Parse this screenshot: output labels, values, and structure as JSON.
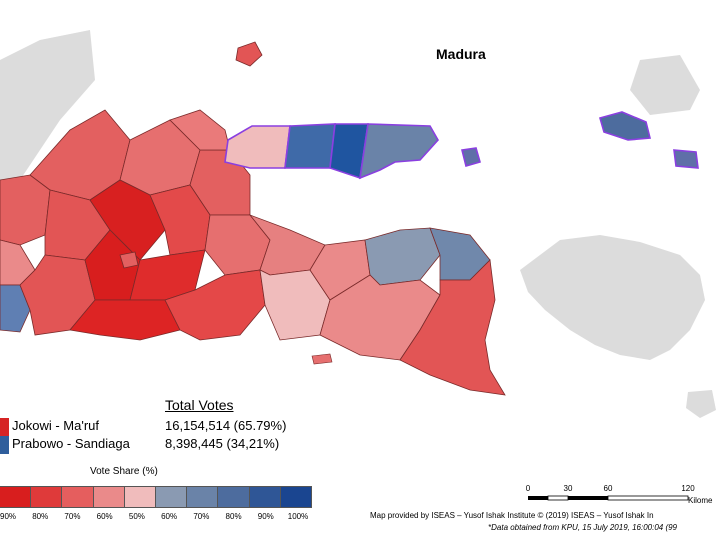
{
  "map": {
    "region_label": "Madura",
    "colors": {
      "sea": "#ffffff",
      "neighbor_land": "#dcdcdc",
      "madura_border": "#8a3fe0",
      "boundary": "#7a2a2a",
      "jokowi": "#d62424",
      "prabowo": "#2f5e9c"
    }
  },
  "legend": {
    "total_title": "Total Votes",
    "candidates": [
      {
        "name": "Jokowi - Ma'ruf",
        "votes": "16,154,514 (65.79%)",
        "color": "#d62424"
      },
      {
        "name": "Prabowo - Sandiaga",
        "votes": "8,398,445 (34,21%)",
        "color": "#2f5e9c"
      }
    ]
  },
  "vote_share": {
    "title": "Vote Share (%)",
    "ticks": [
      "90%",
      "80%",
      "70%",
      "60%",
      "50%",
      "60%",
      "70%",
      "80%",
      "90%",
      "100%"
    ],
    "bins": [
      {
        "color": "#d81e1e"
      },
      {
        "color": "#df3a3a"
      },
      {
        "color": "#e55e5e"
      },
      {
        "color": "#ea8a8a"
      },
      {
        "color": "#f0bcbc"
      },
      {
        "color": "#8a9ab2"
      },
      {
        "color": "#6a83a8"
      },
      {
        "color": "#4d6c9e"
      },
      {
        "color": "#2f5696"
      },
      {
        "color": "#1a4590"
      }
    ]
  },
  "scale_bar": {
    "ticks": [
      "0",
      "30",
      "60",
      "120"
    ],
    "unit": "Kilome"
  },
  "footer": {
    "credit": "Map provided by ISEAS – Yusof Ishak Institute © (2019) ISEAS – Yusof Ishak In",
    "source": "*Data obtained from KPU, 15 July 2019, 16:00:04 (99"
  }
}
